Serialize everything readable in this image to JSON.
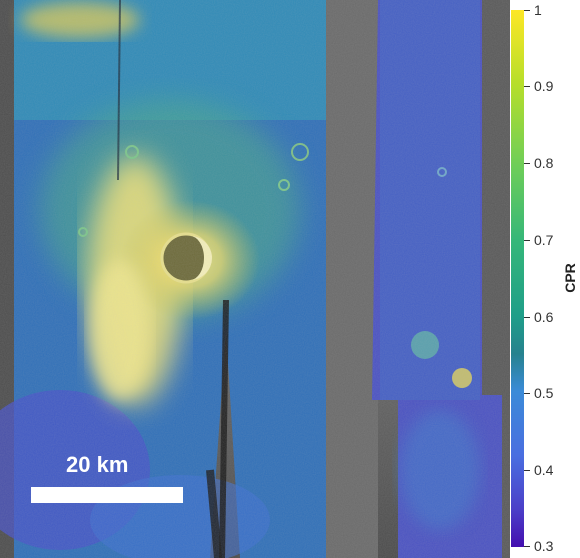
{
  "scale_bar": {
    "label": "20 km"
  },
  "colorbar": {
    "title": "CPR",
    "ticks": [
      "1",
      "0.9",
      "0.8",
      "0.7",
      "0.6",
      "0.5",
      "0.4",
      "0.3"
    ],
    "colors": [
      "#fde725",
      "#6ece58",
      "#1f9e89",
      "#3b8bd8",
      "#440fb0"
    ]
  }
}
